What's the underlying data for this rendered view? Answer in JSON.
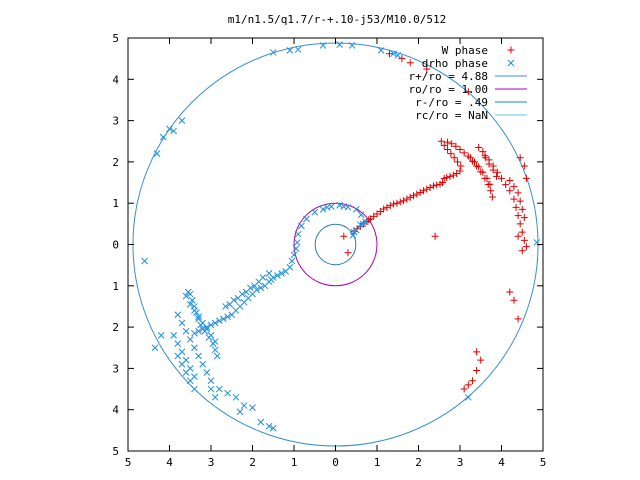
{
  "chart_data": {
    "type": "scatter",
    "title": "m1/n1.5/q1.7/r-+.10-j53/M10.0/512",
    "xlim": [
      -5,
      5
    ],
    "ylim": [
      -5,
      5
    ],
    "x_tick_values": [
      -5,
      -4,
      -3,
      -2,
      -1,
      0,
      1,
      2,
      3,
      4,
      5
    ],
    "x_tick_labels": [
      "5",
      "4",
      "3",
      "2",
      "1",
      "0",
      "1",
      "2",
      "3",
      "4",
      "5"
    ],
    "y_tick_values": [
      5,
      4,
      3,
      2,
      1,
      0,
      -1,
      -2,
      -3,
      -4,
      -5
    ],
    "y_tick_labels": [
      "5",
      "4",
      "3",
      "2",
      "1",
      "0",
      "1",
      "2",
      "3",
      "4",
      "5"
    ],
    "grid": false,
    "legend_position": "top-right",
    "colors": {
      "w_phase": "#e00000",
      "drho_phase": "#1e8fe0",
      "r_plus": "#3a8fd0",
      "ro": "#b000b0",
      "r_minus": "#2080c8",
      "rc": "#5fc8e0"
    },
    "legend": [
      {
        "key": "w_phase",
        "label": "W phase",
        "marker": "plus"
      },
      {
        "key": "drho_phase",
        "label": "drho phase",
        "marker": "cross"
      },
      {
        "key": "r_plus",
        "label": "r+/ro = 4.88",
        "marker": "line"
      },
      {
        "key": "ro",
        "label": "ro/ro = 1.00",
        "marker": "line"
      },
      {
        "key": "r_minus",
        "label": "r-/ro = .49",
        "marker": "line"
      },
      {
        "key": "rc",
        "label": "rc/ro = NaN",
        "marker": "line"
      }
    ],
    "circles": [
      {
        "key": "r_plus",
        "radius": 4.88
      },
      {
        "key": "ro",
        "radius": 1.0
      },
      {
        "key": "r_minus",
        "radius": 0.49
      }
    ],
    "series": [
      {
        "key": "w_phase",
        "name": "W phase",
        "marker": "plus",
        "points": [
          [
            0.45,
            0.32
          ],
          [
            0.52,
            0.38
          ],
          [
            0.6,
            0.44
          ],
          [
            0.68,
            0.5
          ],
          [
            0.76,
            0.56
          ],
          [
            0.84,
            0.62
          ],
          [
            0.92,
            0.68
          ],
          [
            1.0,
            0.74
          ],
          [
            1.08,
            0.8
          ],
          [
            1.16,
            0.86
          ],
          [
            1.24,
            0.9
          ],
          [
            1.32,
            0.94
          ],
          [
            1.4,
            0.98
          ],
          [
            1.48,
            1.0
          ],
          [
            1.56,
            1.03
          ],
          [
            1.64,
            1.06
          ],
          [
            1.72,
            1.1
          ],
          [
            1.8,
            1.14
          ],
          [
            1.88,
            1.18
          ],
          [
            1.96,
            1.22
          ],
          [
            2.04,
            1.26
          ],
          [
            2.12,
            1.3
          ],
          [
            2.2,
            1.34
          ],
          [
            2.28,
            1.38
          ],
          [
            2.36,
            1.42
          ],
          [
            2.44,
            1.44
          ],
          [
            2.52,
            1.46
          ],
          [
            2.58,
            1.5
          ],
          [
            2.62,
            1.6
          ],
          [
            2.68,
            1.62
          ],
          [
            2.76,
            1.65
          ],
          [
            2.84,
            1.68
          ],
          [
            2.92,
            1.72
          ],
          [
            3.0,
            1.78
          ],
          [
            2.55,
            2.5
          ],
          [
            2.62,
            2.4
          ],
          [
            2.7,
            2.3
          ],
          [
            2.78,
            2.2
          ],
          [
            2.86,
            2.1
          ],
          [
            2.94,
            2.0
          ],
          [
            3.02,
            1.9
          ],
          [
            2.7,
            2.48
          ],
          [
            2.8,
            2.44
          ],
          [
            2.9,
            2.38
          ],
          [
            3.0,
            2.3
          ],
          [
            3.1,
            2.22
          ],
          [
            3.2,
            2.14
          ],
          [
            3.3,
            2.02
          ],
          [
            3.4,
            1.9
          ],
          [
            3.5,
            1.76
          ],
          [
            3.6,
            1.6
          ],
          [
            3.68,
            1.45
          ],
          [
            3.74,
            1.3
          ],
          [
            3.78,
            1.15
          ],
          [
            3.25,
            2.1
          ],
          [
            3.35,
            2.0
          ],
          [
            3.45,
            1.88
          ],
          [
            3.55,
            1.75
          ],
          [
            3.65,
            1.6
          ],
          [
            3.72,
            1.46
          ],
          [
            3.45,
            2.35
          ],
          [
            3.55,
            2.25
          ],
          [
            3.62,
            2.1
          ],
          [
            3.7,
            1.95
          ],
          [
            3.8,
            1.8
          ],
          [
            3.88,
            1.65
          ],
          [
            3.6,
            2.15
          ],
          [
            3.7,
            2.05
          ],
          [
            3.8,
            1.9
          ],
          [
            3.9,
            1.75
          ],
          [
            4.0,
            1.6
          ],
          [
            4.1,
            1.45
          ],
          [
            4.2,
            1.3
          ],
          [
            4.3,
            1.1
          ],
          [
            4.35,
            0.9
          ],
          [
            4.4,
            0.7
          ],
          [
            4.45,
            0.5
          ],
          [
            4.5,
            0.3
          ],
          [
            4.55,
            0.1
          ],
          [
            4.6,
            -0.05
          ],
          [
            4.2,
            1.55
          ],
          [
            4.3,
            1.4
          ],
          [
            4.4,
            1.25
          ],
          [
            4.45,
            1.05
          ],
          [
            4.5,
            0.85
          ],
          [
            4.55,
            0.65
          ],
          [
            4.45,
            2.1
          ],
          [
            4.55,
            1.9
          ],
          [
            4.6,
            1.6
          ],
          [
            4.4,
            0.2
          ],
          [
            4.5,
            -0.15
          ],
          [
            4.2,
            -1.15
          ],
          [
            4.3,
            -1.35
          ],
          [
            4.4,
            -1.8
          ],
          [
            3.4,
            -2.6
          ],
          [
            3.5,
            -2.8
          ],
          [
            3.4,
            -3.05
          ],
          [
            3.3,
            -3.3
          ],
          [
            3.2,
            -3.4
          ],
          [
            3.1,
            -3.5
          ],
          [
            2.4,
            0.2
          ],
          [
            3.2,
            3.7
          ],
          [
            0.3,
            -0.2
          ],
          [
            0.2,
            0.2
          ],
          [
            0.8,
            0.6
          ],
          [
            1.3,
            4.62
          ],
          [
            1.6,
            4.5
          ],
          [
            1.8,
            4.4
          ],
          [
            2.2,
            4.25
          ]
        ]
      },
      {
        "key": "drho_phase",
        "name": "drho phase",
        "marker": "cross",
        "points": [
          [
            0.45,
            0.3
          ],
          [
            0.5,
            0.35
          ],
          [
            0.42,
            0.22
          ],
          [
            0.6,
            0.48
          ],
          [
            0.72,
            0.55
          ],
          [
            0.66,
            0.5
          ],
          [
            -0.1,
            0.92
          ],
          [
            -0.3,
            0.85
          ],
          [
            -0.5,
            0.78
          ],
          [
            -0.7,
            0.62
          ],
          [
            -0.82,
            0.45
          ],
          [
            -0.9,
            0.25
          ],
          [
            0.1,
            0.95
          ],
          [
            0.3,
            0.9
          ],
          [
            0.5,
            0.85
          ],
          [
            0.62,
            0.72
          ],
          [
            -0.2,
            0.9
          ],
          [
            0.2,
            0.92
          ],
          [
            -0.92,
            0.05
          ],
          [
            -0.95,
            -0.1
          ],
          [
            -1.0,
            -0.25
          ],
          [
            -1.05,
            -0.4
          ],
          [
            -1.1,
            -0.55
          ],
          [
            -1.2,
            -0.65
          ],
          [
            -1.3,
            -0.7
          ],
          [
            -1.4,
            -0.75
          ],
          [
            -1.5,
            -0.8
          ],
          [
            -1.55,
            -0.85
          ],
          [
            -1.6,
            -0.9
          ],
          [
            -1.7,
            -1.0
          ],
          [
            -1.8,
            -1.05
          ],
          [
            -1.9,
            -1.1
          ],
          [
            -2.0,
            -1.2
          ],
          [
            -2.1,
            -1.3
          ],
          [
            -2.2,
            -1.4
          ],
          [
            -2.3,
            -1.5
          ],
          [
            -2.4,
            -1.6
          ],
          [
            -2.5,
            -1.7
          ],
          [
            -2.6,
            -1.75
          ],
          [
            -2.7,
            -1.8
          ],
          [
            -2.8,
            -1.85
          ],
          [
            -2.9,
            -1.9
          ],
          [
            -3.0,
            -1.95
          ],
          [
            -3.1,
            -2.0
          ],
          [
            -3.2,
            -2.05
          ],
          [
            -3.3,
            -2.1
          ],
          [
            -3.4,
            -2.15
          ],
          [
            -1.6,
            -0.7
          ],
          [
            -1.75,
            -0.8
          ],
          [
            -1.85,
            -0.9
          ],
          [
            -1.95,
            -1.0
          ],
          [
            -2.05,
            -1.05
          ],
          [
            -2.15,
            -1.15
          ],
          [
            -2.25,
            -1.2
          ],
          [
            -2.35,
            -1.3
          ],
          [
            -2.45,
            -1.35
          ],
          [
            -2.55,
            -1.45
          ],
          [
            -2.65,
            -1.5
          ],
          [
            -3.5,
            -1.2
          ],
          [
            -3.45,
            -1.35
          ],
          [
            -3.4,
            -1.5
          ],
          [
            -3.35,
            -1.65
          ],
          [
            -3.3,
            -1.8
          ],
          [
            -3.25,
            -1.95
          ],
          [
            -3.15,
            -2.1
          ],
          [
            -3.05,
            -2.25
          ],
          [
            -2.95,
            -2.4
          ],
          [
            -2.9,
            -2.55
          ],
          [
            -2.85,
            -2.7
          ],
          [
            -3.55,
            -1.15
          ],
          [
            -3.6,
            -1.25
          ],
          [
            -3.5,
            -1.45
          ],
          [
            -3.4,
            -1.6
          ],
          [
            -3.3,
            -1.75
          ],
          [
            -3.2,
            -1.9
          ],
          [
            -3.1,
            -2.05
          ],
          [
            -3.0,
            -2.2
          ],
          [
            -2.9,
            -2.35
          ],
          [
            -3.8,
            -1.7
          ],
          [
            -3.7,
            -1.9
          ],
          [
            -3.6,
            -2.1
          ],
          [
            -3.5,
            -2.3
          ],
          [
            -3.4,
            -2.5
          ],
          [
            -3.3,
            -2.7
          ],
          [
            -3.2,
            -2.9
          ],
          [
            -3.1,
            -3.1
          ],
          [
            -3.0,
            -3.3
          ],
          [
            -3.0,
            -3.5
          ],
          [
            -2.9,
            -3.7
          ],
          [
            -3.9,
            -2.2
          ],
          [
            -3.8,
            -2.4
          ],
          [
            -3.7,
            -2.6
          ],
          [
            -3.6,
            -2.8
          ],
          [
            -3.5,
            -3.0
          ],
          [
            -3.4,
            -3.2
          ],
          [
            -3.8,
            -2.7
          ],
          [
            -3.7,
            -2.9
          ],
          [
            -3.6,
            -3.1
          ],
          [
            -3.5,
            -3.3
          ],
          [
            -3.4,
            -3.5
          ],
          [
            -2.8,
            -3.5
          ],
          [
            -2.6,
            -3.6
          ],
          [
            -2.4,
            -3.7
          ],
          [
            -2.2,
            -3.9
          ],
          [
            -2.0,
            -3.95
          ],
          [
            -2.3,
            -4.05
          ],
          [
            -1.8,
            -4.3
          ],
          [
            -1.6,
            -4.4
          ],
          [
            -1.5,
            -4.45
          ],
          [
            -4.2,
            -2.2
          ],
          [
            -4.35,
            -2.5
          ],
          [
            -4.6,
            -0.4
          ],
          [
            -4.3,
            2.2
          ],
          [
            -4.15,
            2.6
          ],
          [
            -4.0,
            2.8
          ],
          [
            -3.9,
            2.75
          ],
          [
            -3.7,
            3.0
          ],
          [
            -1.5,
            4.65
          ],
          [
            -1.1,
            4.7
          ],
          [
            -0.9,
            4.72
          ],
          [
            -0.3,
            4.82
          ],
          [
            0.1,
            4.84
          ],
          [
            0.4,
            4.82
          ],
          [
            1.1,
            4.7
          ],
          [
            1.4,
            4.62
          ],
          [
            1.5,
            4.58
          ],
          [
            3.2,
            -3.7
          ],
          [
            4.85,
            0.05
          ]
        ]
      }
    ]
  }
}
